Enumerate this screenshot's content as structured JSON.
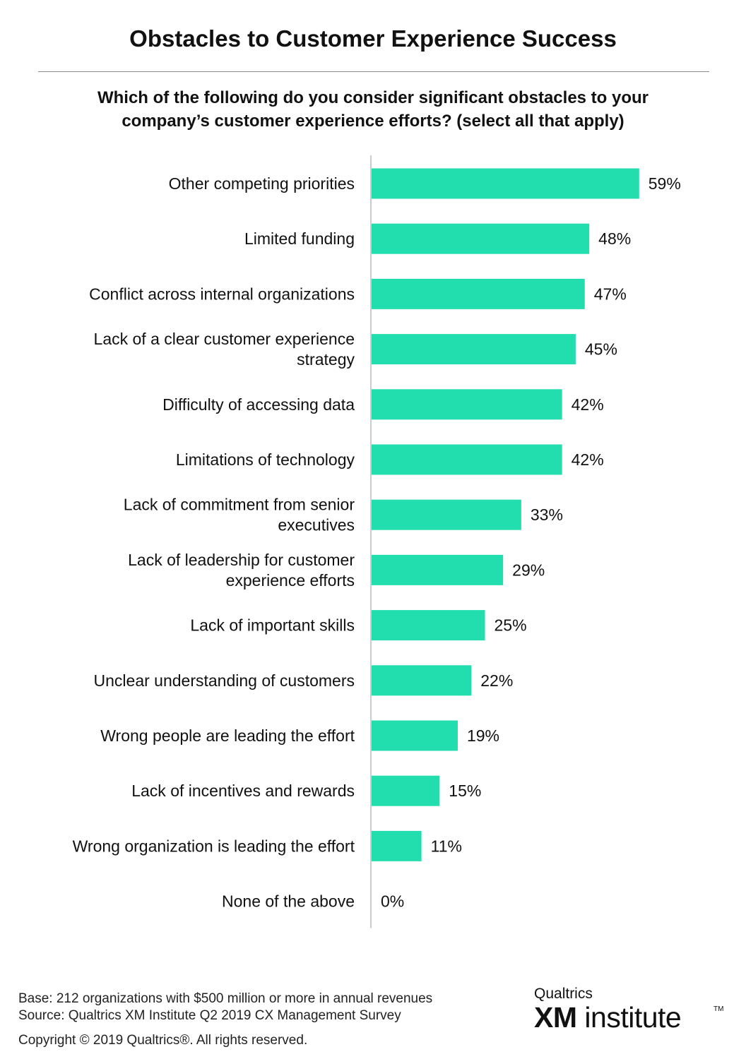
{
  "title": "Obstacles to Customer Experience Success",
  "subtitle_lines": [
    "Which of the following do you consider significant obstacles to your",
    "company’s customer experience efforts? (select all that apply)"
  ],
  "colors": {
    "bar": "#22deae",
    "axis": "#cccccc",
    "rule": "#8a8a8a"
  },
  "chart_data": {
    "type": "bar",
    "orientation": "horizontal",
    "categories": [
      [
        "Other competing priorities"
      ],
      [
        "Limited funding"
      ],
      [
        "Conflict across internal organizations"
      ],
      [
        "Lack of a clear customer experience",
        "strategy"
      ],
      [
        "Difficulty of accessing data"
      ],
      [
        "Limitations of technology"
      ],
      [
        "Lack of commitment from senior",
        "executives"
      ],
      [
        "Lack of leadership for customer",
        "experience efforts"
      ],
      [
        "Lack of important skills"
      ],
      [
        "Unclear understanding of customers"
      ],
      [
        "Wrong people are leading the effort"
      ],
      [
        "Lack of incentives and rewards"
      ],
      [
        "Wrong organization is leading the effort"
      ],
      [
        "None of the above"
      ]
    ],
    "values": [
      59,
      48,
      47,
      45,
      42,
      42,
      33,
      29,
      25,
      22,
      19,
      15,
      11,
      0
    ],
    "value_labels": [
      "59%",
      "48%",
      "47%",
      "45%",
      "42%",
      "42%",
      "33%",
      "29%",
      "25%",
      "22%",
      "19%",
      "15%",
      "11%",
      "0%"
    ],
    "unit": "%",
    "xlim": [
      0,
      100
    ],
    "grid": false,
    "legend": "none"
  },
  "footer": {
    "base": "Base: 212 organizations with $500 million or more in annual revenues",
    "source": "Source: Qualtrics XM Institute Q2 2019 CX Management Survey",
    "copyright": "Copyright © 2019 Qualtrics®.  All rights reserved."
  },
  "logo": {
    "top": "Qualtrics",
    "xm": "XM",
    "word": "institute",
    "tm": "TM"
  }
}
